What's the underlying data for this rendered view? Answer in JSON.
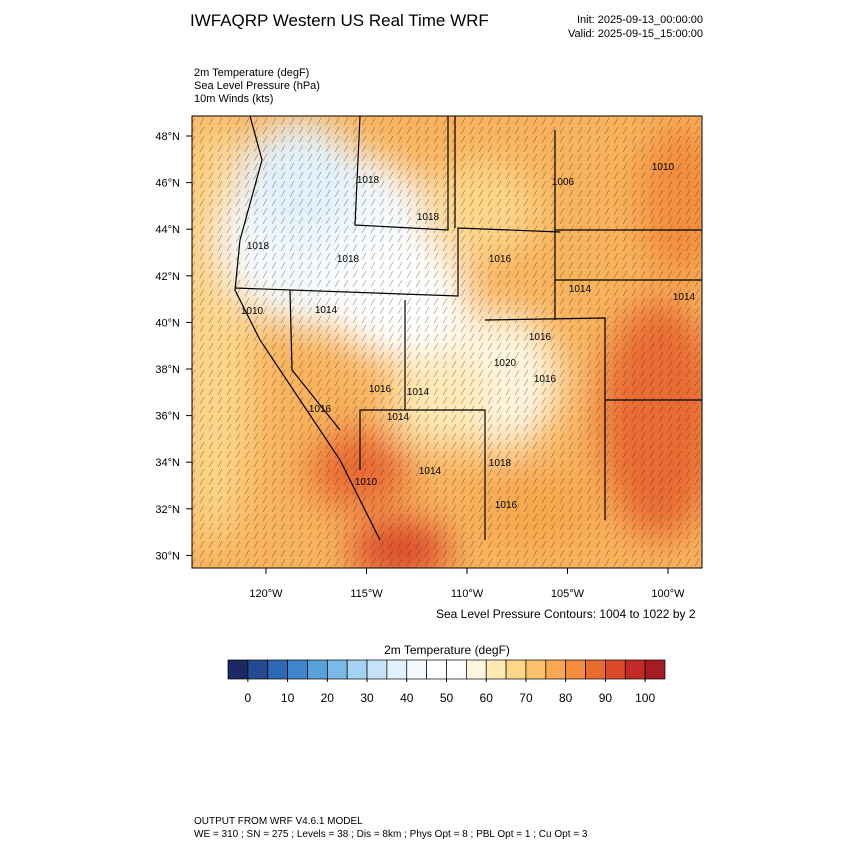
{
  "title": "IWFAQRP Western US Real Time WRF",
  "init": "Init: 2025-09-13_00:00:00",
  "valid": "Valid: 2025-09-15_15:00:00",
  "fields": [
    "2m Temperature   (degF)",
    "Sea Level Pressure   (hPa)",
    "10m Winds   (kts)"
  ],
  "lat_labels": [
    "48°N",
    "46°N",
    "44°N",
    "42°N",
    "40°N",
    "38°N",
    "36°N",
    "34°N",
    "32°N",
    "30°N"
  ],
  "lon_labels": [
    "120°W",
    "115°W",
    "110°W",
    "105°W",
    "100°W"
  ],
  "contour_labels": [
    "1018",
    "1006",
    "1010",
    "1018",
    "1018",
    "1016",
    "1014",
    "1010",
    "1014",
    "1014",
    "1018",
    "1020",
    "1016",
    "1014",
    "1016",
    "1014",
    "1010",
    "1018",
    "1014",
    "1016",
    "1016",
    "1016"
  ],
  "contour_note": "Sea Level Pressure Contours: 1004 to 1022 by 2",
  "colorbar": {
    "title": "2m Temperature  (degF)",
    "colors": [
      "#1c2a63",
      "#254a91",
      "#2f69b5",
      "#3c86c9",
      "#5aa1d9",
      "#7bb9e6",
      "#a3d2f2",
      "#c4e3f7",
      "#e2f1fb",
      "#f4f9fd",
      "#ffffff",
      "#ffffff",
      "#fff6e0",
      "#ffe9b5",
      "#fdd68a",
      "#fbc16a",
      "#f8a84e",
      "#f38c3c",
      "#e96b30",
      "#dc4a2a",
      "#c42b27",
      "#a51c24"
    ],
    "ticks": [
      0,
      10,
      20,
      30,
      40,
      50,
      60,
      70,
      80,
      90,
      100
    ]
  },
  "footer": [
    "OUTPUT FROM WRF V4.6.1 MODEL",
    "WE = 310 ; SN = 275 ; Levels = 38 ; Dis = 8km ; Phys Opt = 8 ; PBL Opt = 1 ; Cu Opt = 3"
  ]
}
